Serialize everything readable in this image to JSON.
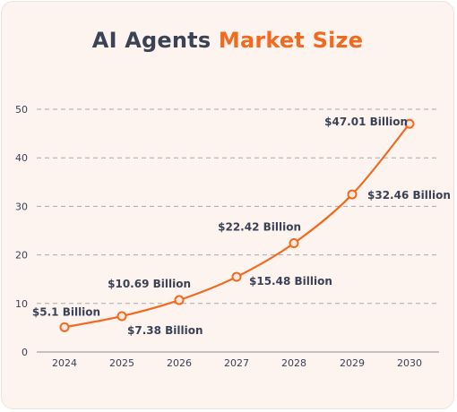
{
  "title": {
    "part1": "AI Agents",
    "part2": "Market Size"
  },
  "colors": {
    "background": "#fdf3ef",
    "line": "#f06a1f",
    "title_dark": "#3b4256",
    "title_accent": "#f06a1f",
    "grid": "#a9a9a9"
  },
  "chart_data": {
    "type": "line",
    "title": "AI Agents Market Size",
    "x": [
      "2024",
      "2025",
      "2026",
      "2027",
      "2028",
      "2029",
      "2030"
    ],
    "series": [
      {
        "values": [
          5.1,
          7.38,
          10.69,
          15.48,
          22.42,
          32.46,
          47.01
        ]
      }
    ],
    "data_labels": [
      "$5.1 Billion",
      "$7.38 Billion",
      "$10.69 Billion",
      "$15.48 Billion",
      "$22.42 Billion",
      "$32.46 Billion",
      "$47.01 Billion"
    ],
    "y_ticks": [
      "0",
      "10",
      "20",
      "30",
      "40",
      "50"
    ],
    "ylim": [
      0,
      50
    ],
    "grid": "dashed horizontal",
    "legend": "none"
  }
}
